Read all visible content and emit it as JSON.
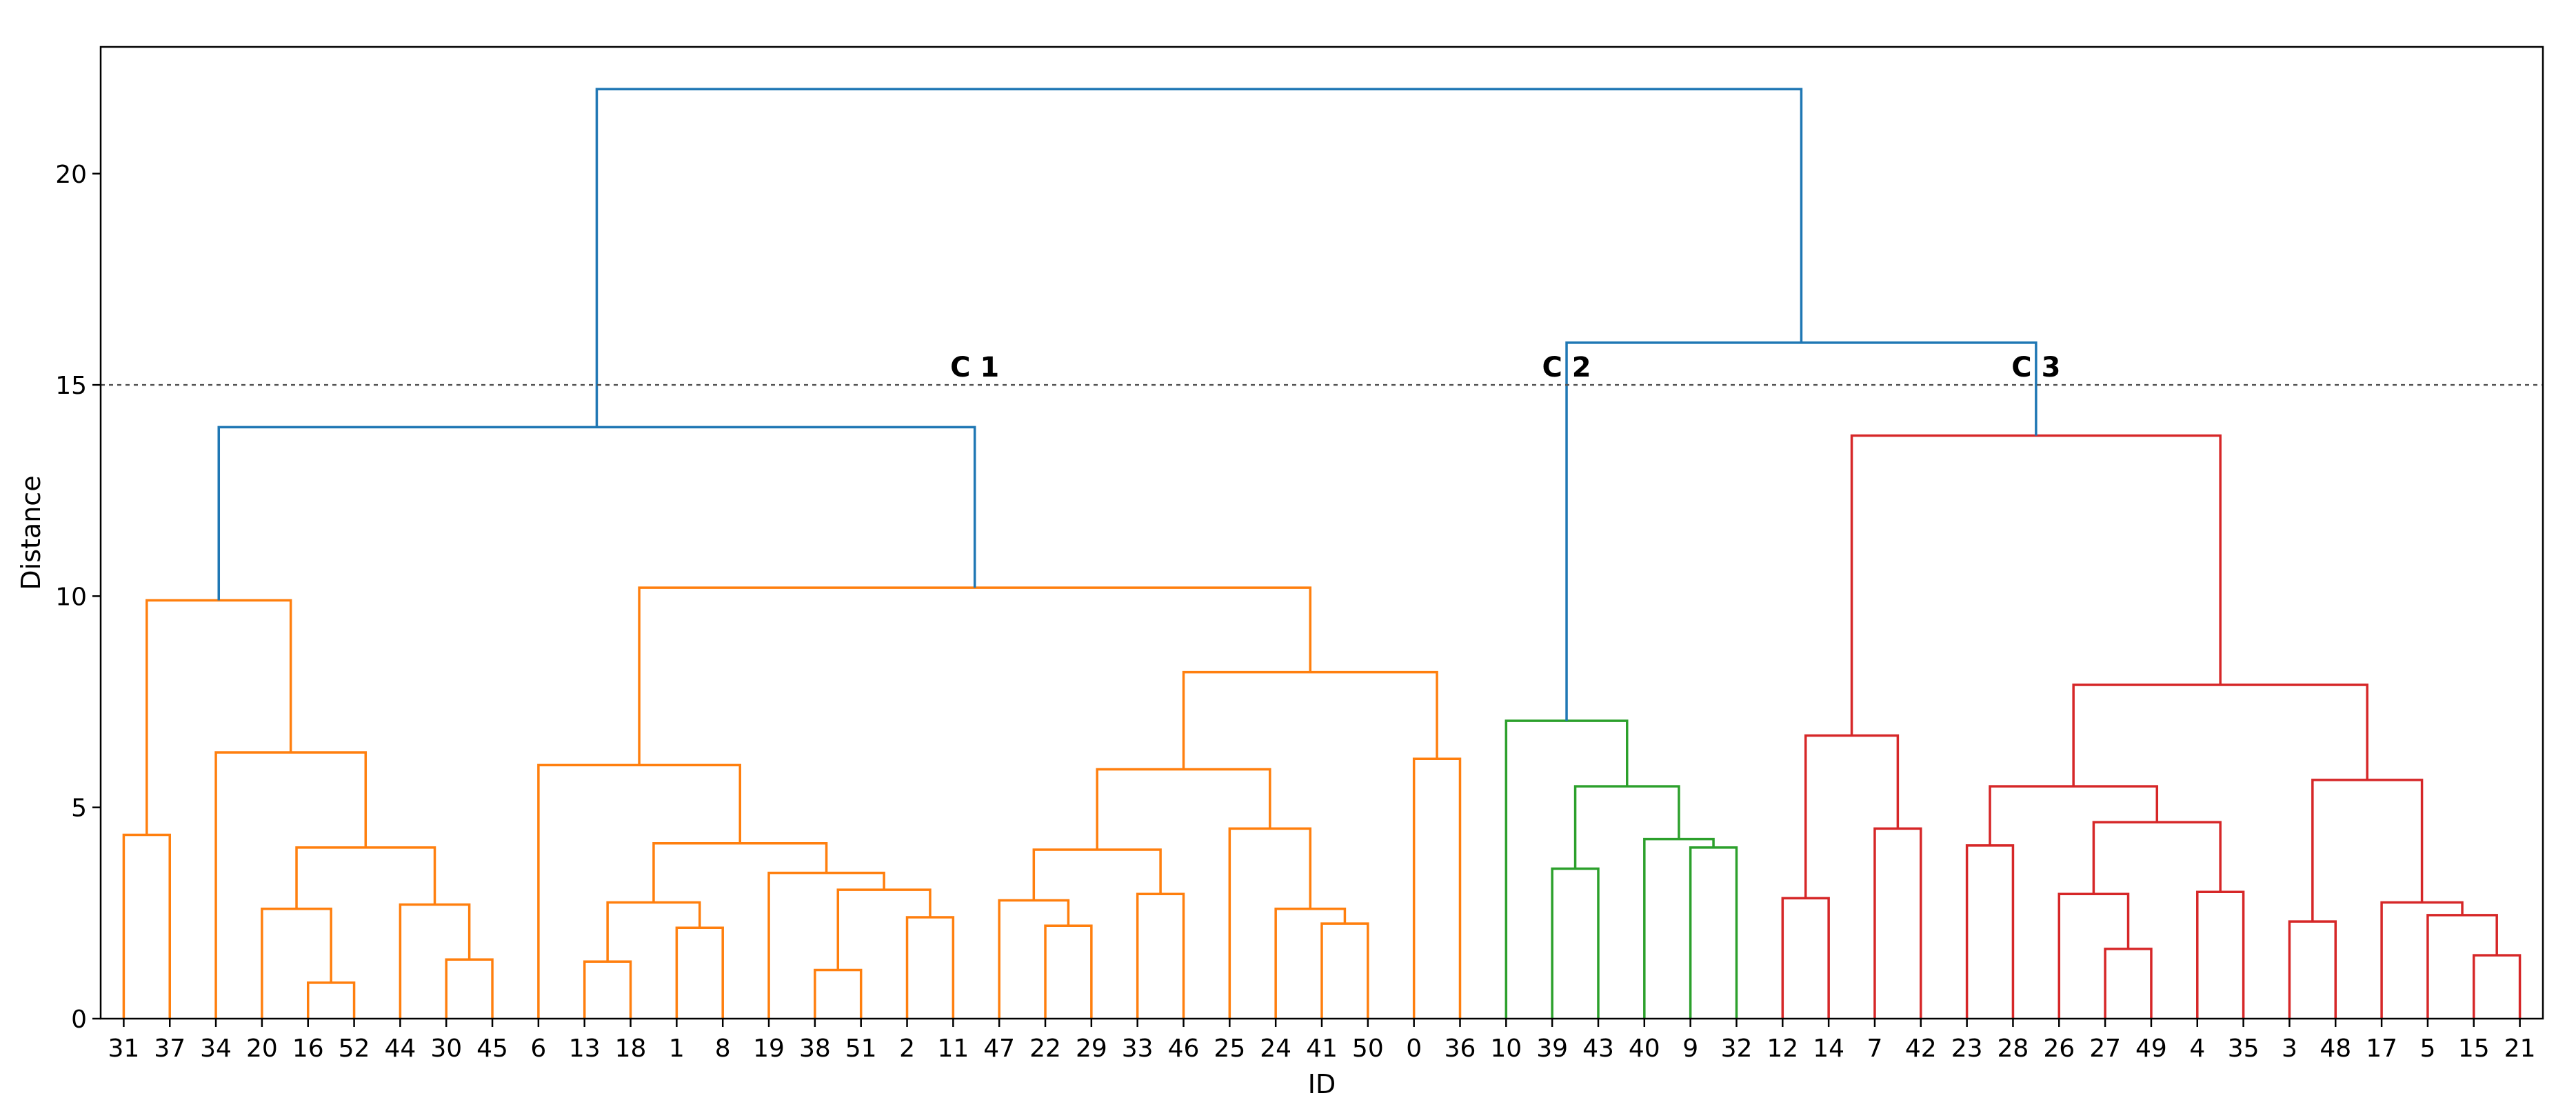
{
  "chart_data": {
    "type": "dendrogram",
    "xlabel": "ID",
    "ylabel": "Distance",
    "ylim": [
      0,
      23
    ],
    "yticks": [
      0,
      5,
      10,
      15,
      20
    ],
    "threshold": 15,
    "grid": false,
    "leaves": [
      "31",
      "37",
      "34",
      "20",
      "16",
      "52",
      "44",
      "30",
      "45",
      "6",
      "13",
      "18",
      "1",
      "8",
      "19",
      "38",
      "51",
      "2",
      "11",
      "47",
      "22",
      "29",
      "33",
      "46",
      "25",
      "24",
      "41",
      "50",
      "0",
      "36",
      "10",
      "39",
      "43",
      "40",
      "9",
      "32",
      "12",
      "14",
      "7",
      "42",
      "23",
      "28",
      "26",
      "27",
      "49",
      "4",
      "35",
      "3",
      "48",
      "17",
      "5",
      "15",
      "21"
    ],
    "clusters": [
      {
        "label": "C 1",
        "color": "#ff7f0e"
      },
      {
        "label": "C 2",
        "color": "#2ca02c"
      },
      {
        "label": "C 3",
        "color": "#d62728"
      }
    ],
    "above_threshold_color": "#1f77b4",
    "merges": [
      {
        "left": "31",
        "right": "37",
        "height": 4.35,
        "color": "#ff7f0e"
      },
      {
        "left": "16",
        "right": "52",
        "height": 0.85,
        "color": "#ff7f0e"
      },
      {
        "left": "20",
        "right": "m2",
        "height": 2.6,
        "color": "#ff7f0e"
      },
      {
        "left": "30",
        "right": "45",
        "height": 1.4,
        "color": "#ff7f0e"
      },
      {
        "left": "44",
        "right": "m4",
        "height": 2.7,
        "color": "#ff7f0e"
      },
      {
        "left": "m3",
        "right": "m5",
        "height": 4.05,
        "color": "#ff7f0e"
      },
      {
        "left": "34",
        "right": "m6",
        "height": 6.3,
        "color": "#ff7f0e"
      },
      {
        "left": "m1",
        "right": "m7",
        "height": 9.9,
        "color": "#ff7f0e"
      },
      {
        "left": "13",
        "right": "18",
        "height": 1.35,
        "color": "#ff7f0e"
      },
      {
        "left": "1",
        "right": "8",
        "height": 2.15,
        "color": "#ff7f0e"
      },
      {
        "left": "m9",
        "right": "m10",
        "height": 2.75,
        "color": "#ff7f0e"
      },
      {
        "left": "38",
        "right": "51",
        "height": 1.15,
        "color": "#ff7f0e"
      },
      {
        "left": "2",
        "right": "11",
        "height": 2.4,
        "color": "#ff7f0e"
      },
      {
        "left": "m12",
        "right": "m13",
        "height": 3.05,
        "color": "#ff7f0e"
      },
      {
        "left": "19",
        "right": "m14",
        "height": 3.45,
        "color": "#ff7f0e"
      },
      {
        "left": "m11",
        "right": "m15",
        "height": 4.15,
        "color": "#ff7f0e"
      },
      {
        "left": "6",
        "right": "m16",
        "height": 6.0,
        "color": "#ff7f0e"
      },
      {
        "left": "22",
        "right": "29",
        "height": 2.2,
        "color": "#ff7f0e"
      },
      {
        "left": "47",
        "right": "m18",
        "height": 2.8,
        "color": "#ff7f0e"
      },
      {
        "left": "33",
        "right": "46",
        "height": 2.95,
        "color": "#ff7f0e"
      },
      {
        "left": "m19",
        "right": "m20",
        "height": 4.0,
        "color": "#ff7f0e"
      },
      {
        "left": "41",
        "right": "50",
        "height": 2.25,
        "color": "#ff7f0e"
      },
      {
        "left": "24",
        "right": "m22",
        "height": 2.6,
        "color": "#ff7f0e"
      },
      {
        "left": "25",
        "right": "m23",
        "height": 4.5,
        "color": "#ff7f0e"
      },
      {
        "left": "m21",
        "right": "m24",
        "height": 5.9,
        "color": "#ff7f0e"
      },
      {
        "left": "0",
        "right": "36",
        "height": 6.15,
        "color": "#ff7f0e"
      },
      {
        "left": "m25",
        "right": "m26",
        "height": 8.2,
        "color": "#ff7f0e"
      },
      {
        "left": "m17",
        "right": "m27",
        "height": 10.2,
        "color": "#ff7f0e"
      },
      {
        "left": "m8",
        "right": "m28",
        "height": 14.0,
        "color": "#1f77b4"
      },
      {
        "left": "39",
        "right": "43",
        "height": 3.55,
        "color": "#2ca02c"
      },
      {
        "left": "9",
        "right": "32",
        "height": 4.05,
        "color": "#2ca02c"
      },
      {
        "left": "40",
        "right": "m31",
        "height": 4.25,
        "color": "#2ca02c"
      },
      {
        "left": "m30",
        "right": "m32",
        "height": 5.5,
        "color": "#2ca02c"
      },
      {
        "left": "10",
        "right": "m33",
        "height": 7.05,
        "color": "#2ca02c"
      },
      {
        "left": "12",
        "right": "14",
        "height": 2.85,
        "color": "#d62728"
      },
      {
        "left": "7",
        "right": "42",
        "height": 4.5,
        "color": "#d62728"
      },
      {
        "left": "m35",
        "right": "m36",
        "height": 6.7,
        "color": "#d62728"
      },
      {
        "left": "23",
        "right": "28",
        "height": 4.1,
        "color": "#d62728"
      },
      {
        "left": "27",
        "right": "49",
        "height": 1.65,
        "color": "#d62728"
      },
      {
        "left": "26",
        "right": "m39",
        "height": 2.95,
        "color": "#d62728"
      },
      {
        "left": "4",
        "right": "35",
        "height": 3.0,
        "color": "#d62728"
      },
      {
        "left": "m40",
        "right": "m41",
        "height": 4.65,
        "color": "#d62728"
      },
      {
        "left": "m38",
        "right": "m42",
        "height": 5.5,
        "color": "#d62728"
      },
      {
        "left": "3",
        "right": "48",
        "height": 2.3,
        "color": "#d62728"
      },
      {
        "left": "15",
        "right": "21",
        "height": 1.5,
        "color": "#d62728"
      },
      {
        "left": "5",
        "right": "m45",
        "height": 2.45,
        "color": "#d62728"
      },
      {
        "left": "17",
        "right": "m46",
        "height": 2.75,
        "color": "#d62728"
      },
      {
        "left": "m44",
        "right": "m47",
        "height": 5.65,
        "color": "#d62728"
      },
      {
        "left": "m43",
        "right": "m48",
        "height": 7.9,
        "color": "#d62728"
      },
      {
        "left": "m37",
        "right": "m49",
        "height": 13.8,
        "color": "#d62728"
      },
      {
        "left": "m34",
        "right": "m50",
        "height": 16.0,
        "color": "#1f77b4"
      },
      {
        "left": "m29",
        "right": "m51",
        "height": 22.0,
        "color": "#1f77b4"
      }
    ]
  }
}
